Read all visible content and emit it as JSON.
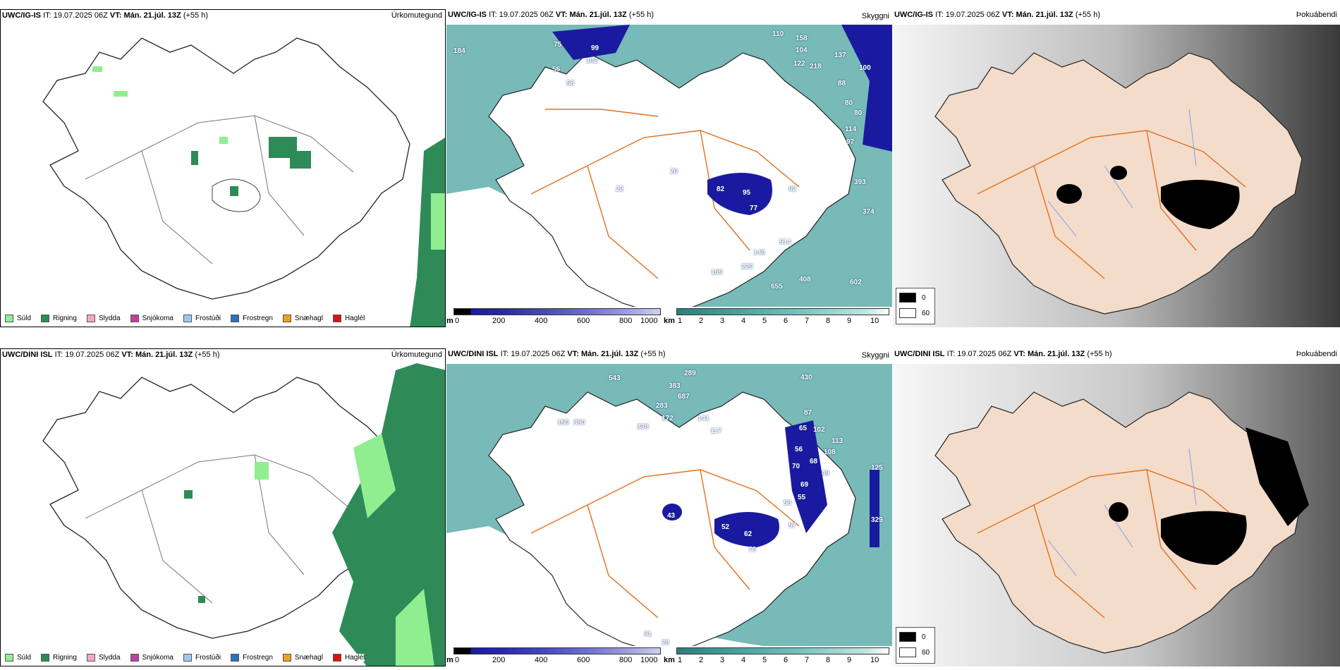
{
  "rows": [
    {
      "model": "UWC/IG-IS",
      "it_label": "IT:",
      "it_value": "19.07.2025 06Z",
      "vt_label": "VT:",
      "vt_value": "Mán. 21.júl. 13Z",
      "lead": "(+55 h)"
    },
    {
      "model": "UWC/DINI ISL",
      "it_label": "IT:",
      "it_value": "19.07.2025 06Z",
      "vt_label": "VT:",
      "vt_value": "Mán. 21.júl. 13Z",
      "lead": "(+55 h)"
    }
  ],
  "titles": {
    "precip": "Úrkomutegund",
    "visibility": "Skyggni",
    "fog": "Þokuábendi"
  },
  "precip_legend": [
    {
      "label": "Súld",
      "color": "#90ee90"
    },
    {
      "label": "Rigning",
      "color": "#2e8b57"
    },
    {
      "label": "Slydda",
      "color": "#f4a6c8"
    },
    {
      "label": "Snjókoma",
      "color": "#c040a0"
    },
    {
      "label": "Frostúði",
      "color": "#9ec9f0"
    },
    {
      "label": "Frostregn",
      "color": "#2f6fc0"
    },
    {
      "label": "Snæhagl",
      "color": "#f0a020"
    },
    {
      "label": "Haglél",
      "color": "#e01010"
    }
  ],
  "colorbars": {
    "height_unit": "m",
    "height_ticks": [
      "0",
      "200",
      "400",
      "600",
      "800",
      "1000"
    ],
    "vis_unit": "km",
    "vis_ticks": [
      "1",
      "2",
      "3",
      "4",
      "5",
      "6",
      "7",
      "8",
      "9",
      "10"
    ]
  },
  "fog_legend": {
    "black": "0",
    "white": "60"
  },
  "vis_labels_top": [
    "184",
    "75",
    "99",
    "102",
    "56",
    "58",
    "110",
    "158",
    "104",
    "122",
    "218",
    "137",
    "100",
    "88",
    "80",
    "80",
    "114",
    "97",
    "82",
    "95",
    "77",
    "62",
    "22",
    "20",
    "514",
    "374",
    "393",
    "140",
    "229",
    "109",
    "655",
    "408",
    "602"
  ],
  "vis_labels_bottom": [
    "543",
    "289",
    "383",
    "687",
    "283",
    "172",
    "141",
    "338",
    "117",
    "150",
    "350",
    "430",
    "87",
    "102",
    "113",
    "65",
    "56",
    "108",
    "68",
    "70",
    "49",
    "69",
    "55",
    "58",
    "125",
    "329",
    "43",
    "52",
    "62",
    "57",
    "76",
    "91",
    "28"
  ],
  "colors": {
    "rain": "#2e8b57",
    "drizzle": "#90ee90",
    "low_cloud": "#1a1aa0",
    "sea_teal": "#4aa3a0",
    "land_fog": "#f4dccb",
    "roads": "#e07020"
  }
}
